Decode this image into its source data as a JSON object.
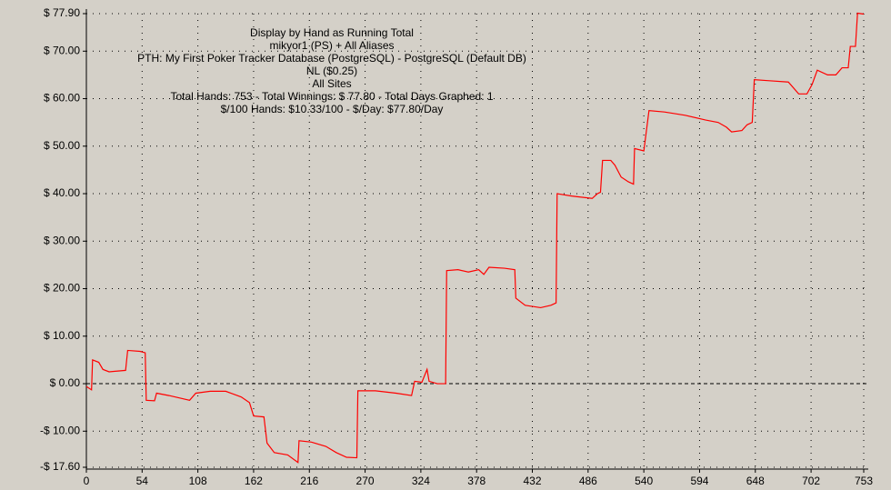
{
  "chart_data": {
    "type": "line",
    "title": "Display by Hand as Running Total",
    "subtitle_lines": [
      "mikyor1 (PS) + All Aliases",
      "PTH: My First Poker Tracker Database (PostgreSQL) - PostgreSQL (Default DB)",
      "NL ($0.25)",
      "All Sites",
      "Total Hands: 753 - Total Winnings: $ 77.80 - Total Days Graphed: 1",
      "$/100 Hands: $10.33/100 - $/Day: $77.80/Day"
    ],
    "grid": true,
    "xlim": [
      0,
      753
    ],
    "xticks": [
      0,
      54,
      108,
      162,
      216,
      270,
      324,
      378,
      432,
      486,
      540,
      594,
      648,
      702,
      753
    ],
    "ylim": [
      -17.6,
      77.9
    ],
    "yticks": [
      {
        "value": -17.6,
        "label": "-$ 17.60"
      },
      {
        "value": -10,
        "label": "-$ 10.00"
      },
      {
        "value": 0,
        "label": "$ 0.00"
      },
      {
        "value": 10,
        "label": "$ 10.00"
      },
      {
        "value": 20,
        "label": "$ 20.00"
      },
      {
        "value": 30,
        "label": "$ 30.00"
      },
      {
        "value": 40,
        "label": "$ 40.00"
      },
      {
        "value": 50,
        "label": "$ 50.00"
      },
      {
        "value": 60,
        "label": "$ 60.00"
      },
      {
        "value": 70,
        "label": "$ 70.00"
      },
      {
        "value": 77.9,
        "label": "$ 77.90"
      }
    ],
    "x": [
      0,
      5,
      6,
      12,
      16,
      22,
      38,
      40,
      52,
      57,
      58,
      66,
      68,
      80,
      90,
      100,
      106,
      120,
      135,
      150,
      158,
      162,
      172,
      175,
      182,
      195,
      205,
      206,
      218,
      232,
      242,
      252,
      262,
      263,
      280,
      300,
      315,
      318,
      325,
      330,
      332,
      340,
      348,
      349,
      360,
      370,
      380,
      385,
      390,
      405,
      415,
      416,
      425,
      440,
      450,
      455,
      456,
      470,
      490,
      495,
      498,
      500,
      508,
      512,
      518,
      525,
      530,
      531,
      540,
      545,
      560,
      580,
      600,
      612,
      620,
      625,
      635,
      640,
      645,
      647,
      660,
      680,
      690,
      698,
      703,
      708,
      718,
      726,
      732,
      738,
      740,
      745,
      747,
      753
    ],
    "series": [
      {
        "color": "#ff0000",
        "values": [
          -0.6,
          -1.3,
          5.0,
          4.5,
          3.0,
          2.5,
          2.8,
          7.0,
          6.8,
          6.5,
          -3.5,
          -3.6,
          -2.0,
          -2.5,
          -3.0,
          -3.5,
          -2.0,
          -1.6,
          -1.6,
          -2.8,
          -4.0,
          -6.8,
          -7.0,
          -12.5,
          -14.5,
          -15.0,
          -16.6,
          -12.0,
          -12.3,
          -13.2,
          -14.5,
          -15.5,
          -15.6,
          -1.5,
          -1.5,
          -2.0,
          -2.5,
          0.5,
          0.3,
          3.0,
          0.5,
          0.0,
          0.0,
          23.8,
          24.0,
          23.5,
          24.0,
          23.0,
          24.5,
          24.3,
          24.0,
          18.0,
          16.5,
          16.0,
          16.5,
          17.0,
          40.0,
          39.5,
          39.0,
          40.0,
          40.3,
          47.0,
          47.0,
          46.0,
          43.5,
          42.5,
          42.0,
          49.5,
          49.0,
          57.5,
          57.2,
          56.5,
          55.5,
          55.0,
          54.0,
          53.0,
          53.3,
          54.5,
          55.0,
          64.0,
          63.8,
          63.5,
          61.0,
          61.0,
          63.0,
          66.0,
          65.0,
          65.0,
          66.5,
          66.5,
          71.0,
          71.0,
          78.0,
          77.8
        ]
      }
    ]
  }
}
